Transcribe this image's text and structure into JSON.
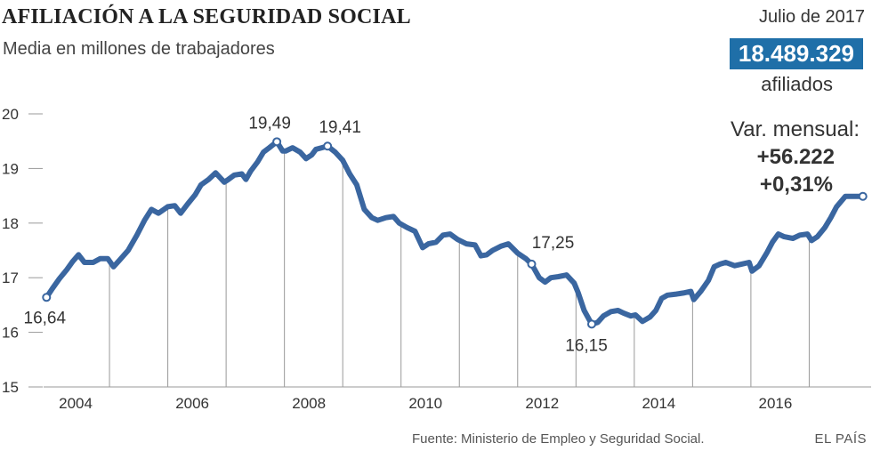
{
  "header": {
    "title": "AFILIACIÓN A LA SEGURIDAD SOCIAL",
    "subtitle": "Media en millones de trabajadores"
  },
  "panel": {
    "date": "Julio de 2017",
    "total": "18.489.329",
    "unit": "afiliados",
    "var_label": "Var. mensual:",
    "var_abs": "+56.222",
    "var_pct": "+0,31%"
  },
  "footer": {
    "source": "Fuente: Ministerio de Empleo y Seguridad Social.",
    "brand": "EL PAÍS"
  },
  "colors": {
    "line": "#3a66a0",
    "panel_bg": "#1f6fa8",
    "grid": "#999999"
  },
  "chart_data": {
    "type": "line",
    "title": "AFILIACIÓN A LA SEGURIDAD SOCIAL",
    "subtitle": "Media en millones de trabajadores",
    "xlabel": "",
    "ylabel": "",
    "ylim": [
      15,
      20
    ],
    "xlim": [
      2003.45,
      2017.55
    ],
    "yticks": [
      15,
      16,
      17,
      18,
      19,
      20
    ],
    "xticks": [
      2004,
      2006,
      2008,
      2010,
      2012,
      2014,
      2016
    ],
    "annual_markers": [
      2004.58,
      2005.58,
      2006.58,
      2007.58,
      2008.58,
      2009.58,
      2010.58,
      2011.58,
      2012.58,
      2013.58,
      2014.58,
      2015.58,
      2016.58
    ],
    "series": [
      {
        "x": [
          2003.5,
          2003.6,
          2003.72,
          2003.85,
          2003.95,
          2004.05,
          2004.15,
          2004.3,
          2004.42,
          2004.55,
          2004.65,
          2004.75,
          2004.9,
          2005.05,
          2005.18,
          2005.3,
          2005.42,
          2005.58,
          2005.7,
          2005.8,
          2005.92,
          2006.05,
          2006.15,
          2006.28,
          2006.4,
          2006.55,
          2006.62,
          2006.72,
          2006.85,
          2006.92,
          2007.0,
          2007.12,
          2007.22,
          2007.32,
          2007.45,
          2007.55,
          2007.6,
          2007.72,
          2007.85,
          2007.95,
          2008.05,
          2008.12,
          2008.22,
          2008.32,
          2008.45,
          2008.58,
          2008.7,
          2008.82,
          2008.95,
          2009.08,
          2009.18,
          2009.32,
          2009.45,
          2009.55,
          2009.68,
          2009.82,
          2009.95,
          2010.05,
          2010.18,
          2010.3,
          2010.42,
          2010.55,
          2010.7,
          2010.85,
          2010.95,
          2011.05,
          2011.15,
          2011.3,
          2011.42,
          2011.58,
          2011.72,
          2011.82,
          2011.95,
          2012.05,
          2012.15,
          2012.28,
          2012.42,
          2012.55,
          2012.62,
          2012.72,
          2012.85,
          2012.95,
          2013.05,
          2013.18,
          2013.3,
          2013.4,
          2013.52,
          2013.6,
          2013.72,
          2013.85,
          2013.95,
          2014.05,
          2014.15,
          2014.3,
          2014.42,
          2014.55,
          2014.6,
          2014.72,
          2014.85,
          2014.95,
          2015.05,
          2015.15,
          2015.3,
          2015.42,
          2015.55,
          2015.6,
          2015.72,
          2015.85,
          2015.95,
          2016.05,
          2016.15,
          2016.3,
          2016.42,
          2016.55,
          2016.62,
          2016.72,
          2016.85,
          2016.95,
          2017.05,
          2017.2,
          2017.35,
          2017.5
        ],
        "y": [
          16.64,
          16.8,
          16.98,
          17.15,
          17.3,
          17.42,
          17.28,
          17.28,
          17.35,
          17.35,
          17.2,
          17.32,
          17.5,
          17.78,
          18.05,
          18.25,
          18.18,
          18.3,
          18.32,
          18.18,
          18.35,
          18.52,
          18.7,
          18.8,
          18.92,
          18.75,
          18.8,
          18.88,
          18.9,
          18.8,
          18.95,
          19.12,
          19.3,
          19.38,
          19.49,
          19.32,
          19.32,
          19.38,
          19.3,
          19.18,
          19.25,
          19.35,
          19.38,
          19.41,
          19.3,
          19.15,
          18.9,
          18.7,
          18.25,
          18.1,
          18.05,
          18.1,
          18.12,
          18.0,
          17.92,
          17.85,
          17.55,
          17.62,
          17.65,
          17.78,
          17.8,
          17.7,
          17.62,
          17.6,
          17.4,
          17.42,
          17.5,
          17.58,
          17.62,
          17.45,
          17.35,
          17.25,
          17.0,
          16.92,
          17.0,
          17.02,
          17.05,
          16.9,
          16.72,
          16.4,
          16.15,
          16.18,
          16.3,
          16.38,
          16.4,
          16.35,
          16.3,
          16.32,
          16.2,
          16.28,
          16.4,
          16.62,
          16.68,
          16.7,
          16.72,
          16.75,
          16.6,
          16.75,
          16.95,
          17.2,
          17.25,
          17.28,
          17.22,
          17.25,
          17.28,
          17.12,
          17.22,
          17.45,
          17.65,
          17.8,
          17.75,
          17.72,
          17.78,
          17.8,
          17.68,
          17.75,
          17.92,
          18.1,
          18.3,
          18.49,
          18.49,
          18.49
        ]
      }
    ],
    "annotations": [
      {
        "x": 2003.5,
        "y": 16.64,
        "label": "16,64"
      },
      {
        "x": 2007.45,
        "y": 19.49,
        "label": "19,49"
      },
      {
        "x": 2008.32,
        "y": 19.41,
        "label": "19,41"
      },
      {
        "x": 2011.82,
        "y": 17.25,
        "label": "17,25"
      },
      {
        "x": 2012.85,
        "y": 16.15,
        "label": "16,15"
      },
      {
        "x": 2017.5,
        "y": 18.49,
        "label": ""
      }
    ],
    "grid": true,
    "legend": "none"
  }
}
